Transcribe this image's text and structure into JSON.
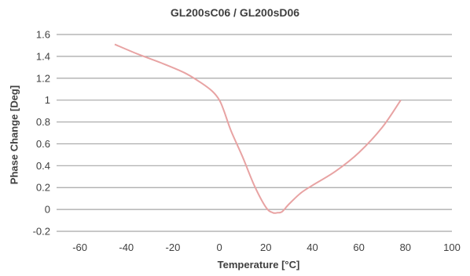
{
  "chart_data": {
    "type": "line",
    "title": "GL200sC06 / GL200sD06",
    "xlabel": "Temperature [°C]",
    "ylabel": "Phase Change [Deg]",
    "xlim": [
      -70,
      100
    ],
    "ylim": [
      -0.2,
      1.6
    ],
    "x_ticks": [
      "-60",
      "-40",
      "-20",
      "0",
      "20",
      "40",
      "60",
      "80",
      "100"
    ],
    "y_ticks": [
      "1.6",
      "1.4",
      "1.2",
      "1",
      "0.8",
      "0.6",
      "0.4",
      "0.2",
      "0",
      "-0.2"
    ],
    "grid": "horizontal",
    "line_color": "#e8a3a3",
    "series": [
      {
        "x": [
          -45,
          -35,
          -25,
          -15,
          -8,
          -3,
          0,
          2,
          5,
          10,
          15,
          20,
          23,
          25,
          27,
          30,
          35,
          40,
          50,
          60,
          70,
          78
        ],
        "y": [
          1.51,
          1.42,
          1.34,
          1.25,
          1.16,
          1.08,
          1.0,
          0.9,
          0.72,
          0.48,
          0.22,
          0.02,
          -0.03,
          -0.03,
          -0.02,
          0.05,
          0.15,
          0.22,
          0.35,
          0.52,
          0.75,
          1.0
        ]
      }
    ]
  }
}
